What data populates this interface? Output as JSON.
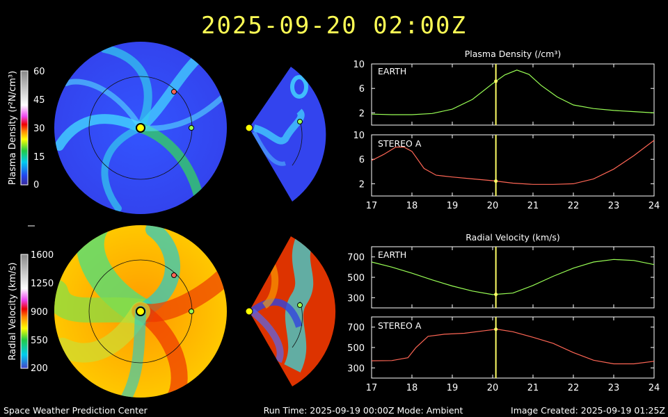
{
  "header": {
    "title": "2025-09-20  02:00Z"
  },
  "footer": {
    "left": "Space Weather Prediction Center",
    "center": "Run Time: 2025-09-19 00:00Z  Mode: Ambient",
    "right": "Image Created: 2025-09-19 01:25Z"
  },
  "colorbars": {
    "density": {
      "label": "Plasma Density (r²N/cm³)",
      "ticks": [
        "60",
        "45",
        "30",
        "15",
        "0"
      ],
      "values": [
        60,
        45,
        30,
        15,
        0
      ]
    },
    "velocity": {
      "label": "Radial Velocity (km/s)",
      "ticks": [
        "1600",
        "1250",
        "900",
        "550",
        "200"
      ],
      "values": [
        1600,
        1250,
        900,
        550,
        200
      ]
    }
  },
  "density_panel": {
    "title": "Plasma Density (/cm³)",
    "earth_label": "EARTH",
    "stereo_label": "STEREO A"
  },
  "velocity_panel": {
    "title": "Radial Velocity (km/s)",
    "earth_label": "EARTH",
    "stereo_label": "STEREO A"
  },
  "colors": {
    "title": "#ffff55",
    "earth_series": "#99ff55",
    "stereo_series": "#ff6655",
    "time_marker": "#ffff66"
  },
  "chart_data": [
    {
      "type": "line",
      "title": "Plasma Density (/cm³)",
      "subplot": "EARTH",
      "x": [
        17,
        17.5,
        18,
        18.5,
        19,
        19.5,
        20,
        20.3,
        20.6,
        20.9,
        21.2,
        21.6,
        22,
        22.5,
        23,
        23.5,
        24
      ],
      "series": [
        {
          "name": "EARTH",
          "values": [
            1.8,
            1.7,
            1.7,
            1.9,
            2.6,
            4.2,
            6.8,
            8.2,
            9.0,
            8.3,
            6.5,
            4.6,
            3.3,
            2.7,
            2.4,
            2.2,
            2.0
          ]
        }
      ],
      "ylim": [
        0,
        10
      ],
      "yticks": [
        2,
        6,
        10
      ],
      "xlim": [
        17,
        24
      ],
      "xticks": [
        "17",
        "18",
        "19",
        "20",
        "21",
        "22",
        "23",
        "24"
      ],
      "marker_x": 20.08
    },
    {
      "type": "line",
      "title": "Plasma Density (/cm³)",
      "subplot": "STEREO A",
      "x": [
        17,
        17.3,
        17.6,
        17.8,
        18,
        18.3,
        18.6,
        19,
        19.5,
        20,
        20.5,
        21,
        21.5,
        22,
        22.5,
        23,
        23.5,
        24
      ],
      "series": [
        {
          "name": "STEREO A",
          "values": [
            5.8,
            6.8,
            8.0,
            8.0,
            7.3,
            4.5,
            3.4,
            3.1,
            2.8,
            2.5,
            2.1,
            1.9,
            1.9,
            2.0,
            2.8,
            4.4,
            6.6,
            9.1
          ]
        }
      ],
      "ylim": [
        0,
        10
      ],
      "yticks": [
        2,
        6,
        10
      ],
      "xlim": [
        17,
        24
      ],
      "xticks": [
        "17",
        "18",
        "19",
        "20",
        "21",
        "22",
        "23",
        "24"
      ],
      "marker_x": 20.08
    },
    {
      "type": "line",
      "title": "Radial Velocity (km/s)",
      "subplot": "EARTH",
      "x": [
        17,
        17.5,
        18,
        18.5,
        19,
        19.5,
        20,
        20.5,
        21,
        21.5,
        22,
        22.5,
        23,
        23.5,
        24
      ],
      "series": [
        {
          "name": "EARTH",
          "values": [
            650,
            600,
            540,
            475,
            415,
            365,
            330,
            345,
            420,
            510,
            590,
            650,
            675,
            665,
            625
          ]
        }
      ],
      "ylim": [
        200,
        800
      ],
      "yticks": [
        300,
        500,
        700
      ],
      "xlim": [
        17,
        24
      ],
      "xticks": [
        "17",
        "18",
        "19",
        "20",
        "21",
        "22",
        "23",
        "24"
      ],
      "marker_x": 20.08
    },
    {
      "type": "line",
      "title": "Radial Velocity (km/s)",
      "subplot": "STEREO A",
      "x": [
        17,
        17.5,
        17.9,
        18.1,
        18.4,
        18.8,
        19.3,
        19.8,
        20.1,
        20.5,
        21,
        21.5,
        22,
        22.5,
        23,
        23.5,
        24
      ],
      "series": [
        {
          "name": "STEREO A",
          "values": [
            370,
            372,
            400,
            500,
            610,
            630,
            640,
            665,
            680,
            655,
            600,
            540,
            450,
            375,
            340,
            340,
            365
          ]
        }
      ],
      "ylim": [
        200,
        800
      ],
      "yticks": [
        300,
        500,
        700
      ],
      "xlim": [
        17,
        24
      ],
      "xticks": [
        "17",
        "18",
        "19",
        "20",
        "21",
        "22",
        "23",
        "24"
      ],
      "marker_x": 20.08
    }
  ]
}
